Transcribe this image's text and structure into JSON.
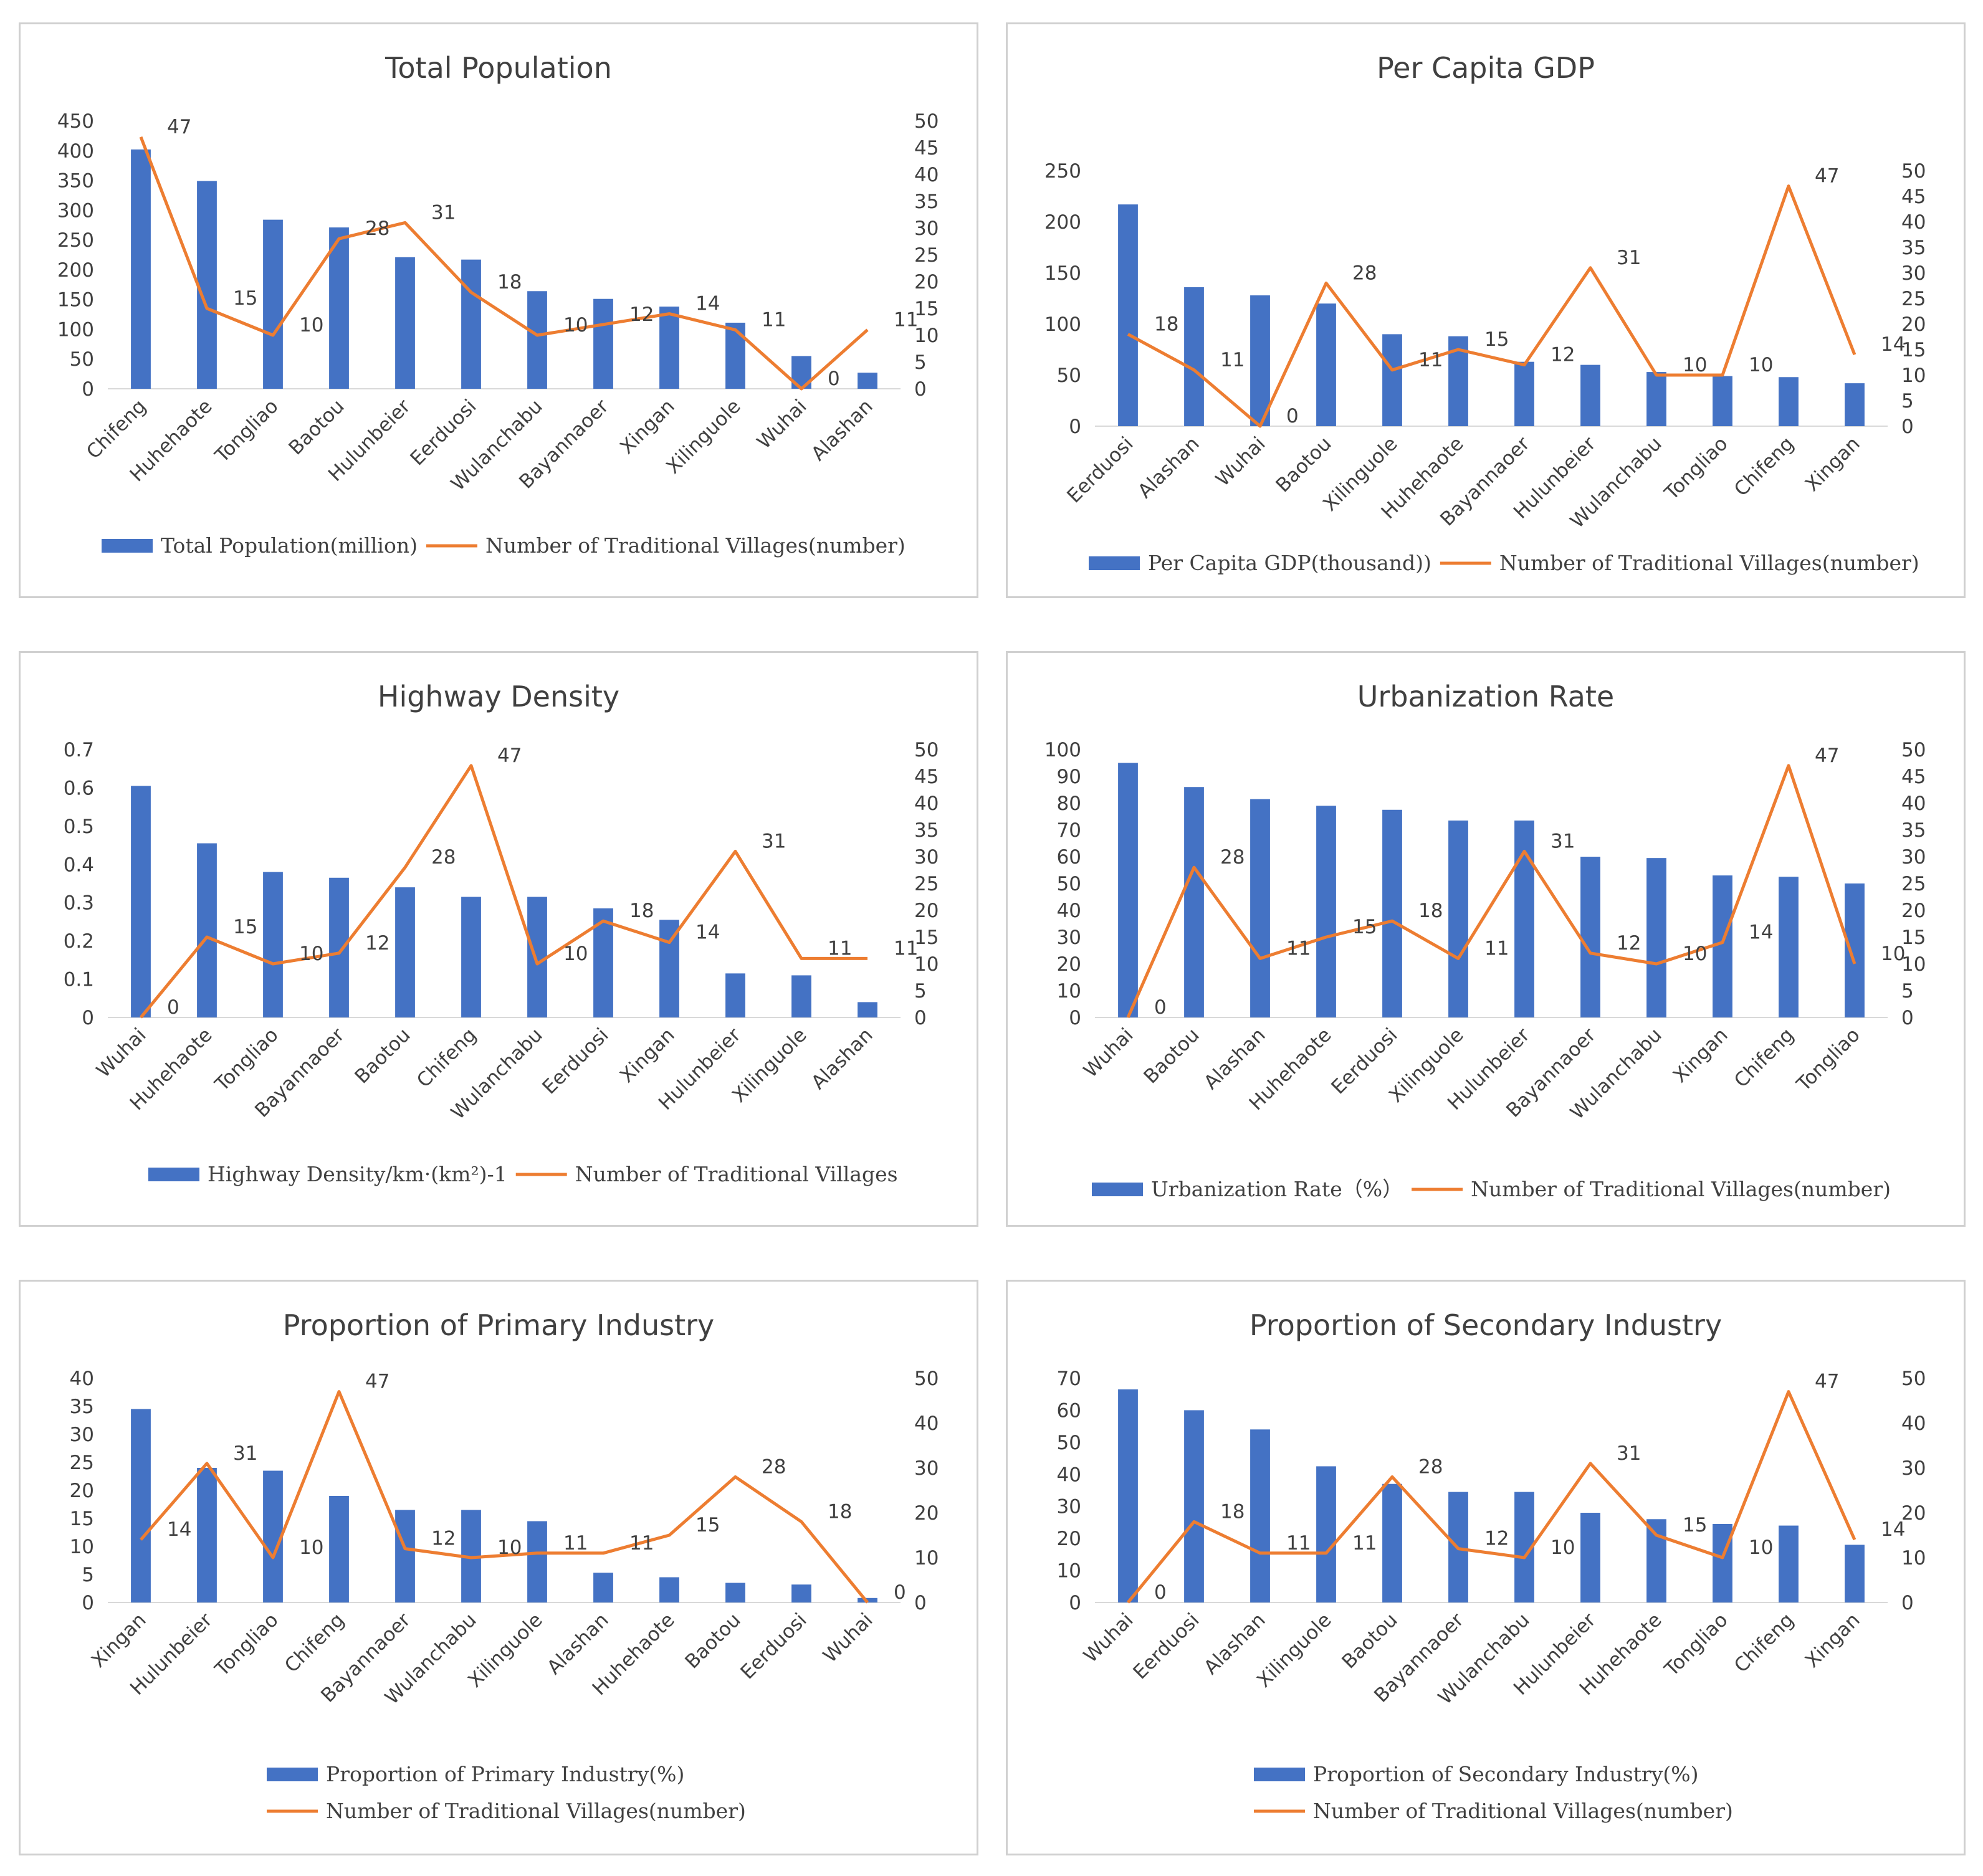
{
  "colors": {
    "bar": "#4472c4",
    "line": "#ed7d31",
    "text": "#404040",
    "border": "#d0d0d0"
  },
  "chart_data": [
    {
      "type": "bar",
      "title": "Total Population",
      "categories": [
        "Chifeng",
        "Huhehaote",
        "Tongliao",
        "Baotou",
        "Hulunbeier",
        "Eerduosi",
        "Wulanchabu",
        "Bayannaoer",
        "Xingan",
        "Xilinguole",
        "Wuhai",
        "Alashan"
      ],
      "series": [
        {
          "name": "Total Population(million)",
          "chart": "bar",
          "axis": "left",
          "values": [
            402,
            349,
            284,
            271,
            221,
            217,
            164,
            151,
            138,
            111,
            55,
            27
          ]
        },
        {
          "name": "Number of Traditional Villages(number)",
          "chart": "line",
          "axis": "right",
          "values": [
            47,
            15,
            10,
            28,
            31,
            18,
            10,
            12,
            14,
            11,
            0,
            11
          ]
        }
      ],
      "line_labels": [
        "47",
        "15",
        "10",
        "28",
        "31",
        "18",
        "10",
        "12",
        "14",
        "11",
        "0",
        "11"
      ],
      "ylim": [
        0,
        450
      ],
      "y_ticks": [
        "0",
        "50",
        "100",
        "150",
        "200",
        "250",
        "300",
        "350",
        "400",
        "450"
      ],
      "y2lim": [
        0,
        50
      ],
      "y2_ticks": [
        "0",
        "5",
        "10",
        "15",
        "20",
        "25",
        "30",
        "35",
        "40",
        "45",
        "50"
      ],
      "legend": [
        "Total Population(million)",
        "Number of Traditional Villages(number)"
      ],
      "legend_rows": 1
    },
    {
      "type": "bar",
      "title": "Per Capita GDP",
      "categories": [
        "Eerduosi",
        "Alashan",
        "Wuhai",
        "Baotou",
        "Xilinguole",
        "Huhehaote",
        "Bayannaoer",
        "Hulunbeier",
        "Wulanchabu",
        "Tongliao",
        "Chifeng",
        "Xingan"
      ],
      "series": [
        {
          "name": "Per Capita GDP(thousand))",
          "chart": "bar",
          "axis": "left",
          "values": [
            217,
            136,
            128,
            120,
            90,
            88,
            63,
            60,
            53,
            49,
            48,
            42
          ]
        },
        {
          "name": "Number of Traditional Villages(number)",
          "chart": "line",
          "axis": "right",
          "values": [
            18,
            11,
            0,
            28,
            11,
            15,
            12,
            31,
            10,
            10,
            47,
            14
          ]
        }
      ],
      "line_labels": [
        "18",
        "11",
        "0",
        "28",
        "11",
        "15",
        "12",
        "31",
        "10",
        "10",
        "47",
        "14"
      ],
      "ylim": [
        0,
        250
      ],
      "y_ticks": [
        "0",
        "50",
        "100",
        "150",
        "200",
        "250"
      ],
      "y2lim": [
        0,
        50
      ],
      "y2_ticks": [
        "0",
        "5",
        "10",
        "15",
        "20",
        "25",
        "30",
        "35",
        "40",
        "45",
        "50"
      ],
      "legend": [
        "Per Capita GDP(thousand))",
        "Number of Traditional Villages(number)"
      ],
      "legend_rows": 1
    },
    {
      "type": "bar",
      "title": "Highway Density",
      "categories": [
        "Wuhai",
        "Huhehaote",
        "Tongliao",
        "Bayannaoer",
        "Baotou",
        "Chifeng",
        "Wulanchabu",
        "Eerduosi",
        "Xingan",
        "Hulunbeier",
        "Xilinguole",
        "Alashan"
      ],
      "series": [
        {
          "name": "Highway Density/km·(km²)-1",
          "chart": "bar",
          "axis": "left",
          "values": [
            0.605,
            0.455,
            0.38,
            0.365,
            0.34,
            0.315,
            0.315,
            0.285,
            0.255,
            0.115,
            0.11,
            0.04
          ]
        },
        {
          "name": "Number of Traditional Villages",
          "chart": "line",
          "axis": "right",
          "values": [
            0,
            15,
            10,
            12,
            28,
            47,
            10,
            18,
            14,
            31,
            11,
            11
          ]
        }
      ],
      "line_labels": [
        "0",
        "15",
        "10",
        "12",
        "28",
        "47",
        "10",
        "18",
        "14",
        "31",
        "11",
        "11"
      ],
      "ylim": [
        0,
        0.7
      ],
      "y_ticks": [
        "0",
        "0.1",
        "0.2",
        "0.3",
        "0.4",
        "0.5",
        "0.6",
        "0.7"
      ],
      "y2lim": [
        0,
        50
      ],
      "y2_ticks": [
        "0",
        "5",
        "10",
        "15",
        "20",
        "25",
        "30",
        "35",
        "40",
        "45",
        "50"
      ],
      "legend": [
        "Highway Density/km·(km²)-1",
        "Number of Traditional Villages"
      ],
      "legend_rows": 1
    },
    {
      "type": "bar",
      "title": "Urbanization Rate",
      "categories": [
        "Wuhai",
        "Baotou",
        "Alashan",
        "Huhehaote",
        "Eerduosi",
        "Xilinguole",
        "Hulunbeier",
        "Bayannaoer",
        "Wulanchabu",
        "Xingan",
        "Chifeng",
        "Tongliao"
      ],
      "series": [
        {
          "name": "Urbanization Rate（%）",
          "chart": "bar",
          "axis": "left",
          "values": [
            95,
            86,
            81.5,
            79,
            77.5,
            73.5,
            73.5,
            60,
            59.5,
            53,
            52.5,
            50
          ]
        },
        {
          "name": "Number of Traditional Villages(number)",
          "chart": "line",
          "axis": "right",
          "values": [
            0,
            28,
            11,
            15,
            18,
            11,
            31,
            12,
            10,
            14,
            47,
            10
          ]
        }
      ],
      "line_labels": [
        "0",
        "28",
        "11",
        "15",
        "18",
        "11",
        "31",
        "12",
        "10",
        "14",
        "47",
        "10"
      ],
      "ylim": [
        0,
        100
      ],
      "y_ticks": [
        "0",
        "10",
        "20",
        "30",
        "40",
        "50",
        "60",
        "70",
        "80",
        "90",
        "100"
      ],
      "y2lim": [
        0,
        50
      ],
      "y2_ticks": [
        "0",
        "5",
        "10",
        "15",
        "20",
        "25",
        "30",
        "35",
        "40",
        "45",
        "50"
      ],
      "legend": [
        "Urbanization Rate（%）",
        "Number of Traditional Villages(number)"
      ],
      "legend_rows": 1
    },
    {
      "type": "bar",
      "title": "Proportion of Primary Industry",
      "categories": [
        "Xingan",
        "Hulunbeier",
        "Tongliao",
        "Chifeng",
        "Bayannaoer",
        "Wulanchabu",
        "Xilinguole",
        "Alashan",
        "Huhehaote",
        "Baotou",
        "Eerduosi",
        "Wuhai"
      ],
      "series": [
        {
          "name": "Proportion of Primary Industry(%)",
          "chart": "bar",
          "axis": "left",
          "values": [
            34.5,
            24,
            23.5,
            19,
            16.5,
            16.5,
            14.5,
            5.3,
            4.5,
            3.5,
            3.2,
            0.8
          ]
        },
        {
          "name": "Number of Traditional Villages(number)",
          "chart": "line",
          "axis": "right",
          "values": [
            14,
            31,
            10,
            47,
            12,
            10,
            11,
            11,
            15,
            28,
            18,
            0
          ]
        }
      ],
      "line_labels": [
        "14",
        "31",
        "10",
        "47",
        "12",
        "10",
        "11",
        "11",
        "15",
        "28",
        "18",
        "0"
      ],
      "ylim": [
        0,
        40
      ],
      "y_ticks": [
        "0",
        "5",
        "10",
        "15",
        "20",
        "25",
        "30",
        "35",
        "40"
      ],
      "y2lim": [
        0,
        50
      ],
      "y2_ticks": [
        "0",
        "10",
        "20",
        "30",
        "40",
        "50"
      ],
      "legend": [
        "Proportion of Primary Industry(%)",
        "Number of Traditional Villages(number)"
      ],
      "legend_rows": 2
    },
    {
      "type": "bar",
      "title": "Proportion of Secondary Industry",
      "categories": [
        "Wuhai",
        "Eerduosi",
        "Alashan",
        "Xilinguole",
        "Baotou",
        "Bayannaoer",
        "Wulanchabu",
        "Hulunbeier",
        "Huhehaote",
        "Tongliao",
        "Chifeng",
        "Xingan"
      ],
      "series": [
        {
          "name": "Proportion of Secondary Industry(%)",
          "chart": "bar",
          "axis": "left",
          "values": [
            66.5,
            60,
            54,
            42.5,
            37,
            34.5,
            34.5,
            28,
            26,
            24.5,
            24,
            18
          ]
        },
        {
          "name": "Number of Traditional Villages(number)",
          "chart": "line",
          "axis": "right",
          "values": [
            0,
            18,
            11,
            11,
            28,
            12,
            10,
            31,
            15,
            10,
            47,
            14
          ]
        }
      ],
      "line_labels": [
        "0",
        "18",
        "11",
        "11",
        "28",
        "12",
        "10",
        "31",
        "15",
        "10",
        "47",
        "14"
      ],
      "ylim": [
        0,
        70
      ],
      "y_ticks": [
        "0",
        "10",
        "20",
        "30",
        "40",
        "50",
        "60",
        "70"
      ],
      "y2lim": [
        0,
        50
      ],
      "y2_ticks": [
        "0",
        "10",
        "20",
        "30",
        "40",
        "50"
      ],
      "legend": [
        "Proportion of Secondary Industry(%)",
        "Number of Traditional Villages(number)"
      ],
      "legend_rows": 2
    }
  ]
}
